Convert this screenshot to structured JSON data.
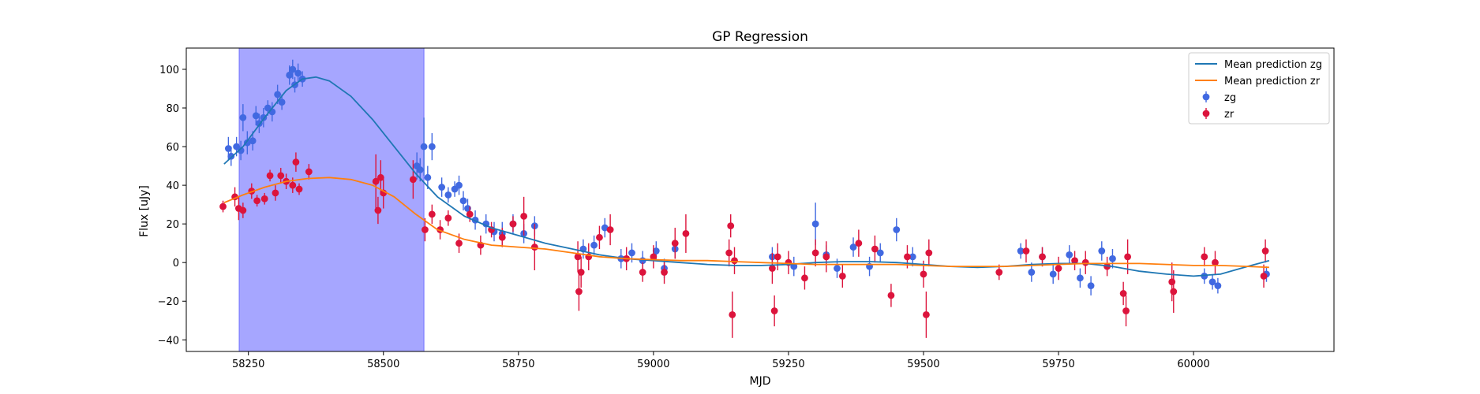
{
  "chart_data": {
    "type": "scatter",
    "title": "GP Regression",
    "xlabel": "MJD",
    "ylabel": "Flux [uJy]",
    "xlim": [
      58135,
      60260
    ],
    "ylim": [
      -46,
      111
    ],
    "x_ticks": [
      58250,
      58500,
      58750,
      59000,
      59250,
      59500,
      59750,
      60000
    ],
    "x_tick_labels": [
      "58250",
      "58500",
      "58750",
      "59000",
      "59250",
      "59500",
      "59750",
      "60000"
    ],
    "y_ticks": [
      -40,
      -20,
      0,
      20,
      40,
      60,
      80,
      100
    ],
    "y_tick_labels": [
      "−40",
      "−20",
      "0",
      "20",
      "40",
      "60",
      "80",
      "100"
    ],
    "highlight_span": {
      "x_start": 58233,
      "x_end": 58575,
      "color": "#a6a6ff"
    },
    "legend": {
      "placement": "top-right",
      "entries": [
        "Mean prediction zg",
        "Mean prediction zr",
        "zg",
        "zr"
      ]
    },
    "series": [
      {
        "name": "Mean prediction zg",
        "kind": "line",
        "color": "#1f77b4",
        "x": [
          58205,
          58240,
          58280,
          58320,
          58350,
          58375,
          58400,
          58440,
          58480,
          58520,
          58560,
          58600,
          58650,
          58700,
          58750,
          58800,
          58850,
          58900,
          58950,
          59000,
          59050,
          59100,
          59150,
          59200,
          59250,
          59300,
          59350,
          59400,
          59450,
          59500,
          59550,
          59600,
          59650,
          59700,
          59750,
          59800,
          59850,
          59900,
          59950,
          60000,
          60050,
          60100,
          60140
        ],
        "y": [
          51,
          60,
          75,
          89,
          95,
          96,
          94,
          86,
          74,
          60,
          46,
          34,
          24,
          18,
          14,
          10,
          7,
          4,
          2,
          1,
          0,
          -1,
          -1.5,
          -1.5,
          -1,
          0,
          0.5,
          0.5,
          0,
          -1,
          -2,
          -2.5,
          -2,
          -1,
          -0.5,
          -0.5,
          -2,
          -4.5,
          -6,
          -7,
          -6,
          -2,
          1
        ]
      },
      {
        "name": "Mean prediction zr",
        "kind": "line",
        "color": "#ff7f0e",
        "x": [
          58205,
          58240,
          58280,
          58320,
          58360,
          58400,
          58440,
          58480,
          58520,
          58560,
          58600,
          58650,
          58700,
          58750,
          58800,
          58850,
          58900,
          58950,
          59000,
          59050,
          59100,
          59150,
          59200,
          59250,
          59300,
          59350,
          59400,
          59450,
          59500,
          59550,
          59600,
          59650,
          59700,
          59750,
          59800,
          59850,
          59900,
          59950,
          60000,
          60050,
          60100,
          60140
        ],
        "y": [
          31,
          35,
          39,
          42,
          43.5,
          44,
          43,
          40,
          34,
          25,
          17,
          12,
          9,
          8,
          7,
          5,
          3,
          2,
          1.5,
          1,
          1,
          0.5,
          0,
          -0.5,
          -1,
          -1,
          -1,
          -1,
          -1.5,
          -2,
          -2,
          -2,
          -1.5,
          -1,
          -0.5,
          -0.5,
          -0.5,
          -1,
          -1.5,
          -1.5,
          -2,
          -2.5
        ]
      },
      {
        "name": "zg",
        "kind": "errorbar",
        "color": "#4169e1",
        "x": [
          58213,
          58218,
          58228,
          58236,
          58240,
          58248,
          58258,
          58264,
          58270,
          58278,
          58286,
          58294,
          58304,
          58312,
          58326,
          58332,
          58336,
          58342,
          58350,
          58562,
          58568,
          58575,
          58582,
          58590,
          58608,
          58620,
          58632,
          58640,
          58648,
          58656,
          58670,
          58690,
          58705,
          58720,
          58740,
          58760,
          58780,
          58870,
          58890,
          58910,
          58940,
          58960,
          58980,
          59005,
          59020,
          59040,
          59220,
          59260,
          59300,
          59320,
          59340,
          59370,
          59400,
          59420,
          59450,
          59480,
          59680,
          59700,
          59720,
          59740,
          59770,
          59790,
          59810,
          59830,
          59850,
          60020,
          60035,
          60045,
          60135
        ],
        "y": [
          59,
          55,
          60,
          58,
          75,
          62,
          63,
          76,
          72,
          75,
          80,
          78,
          87,
          83,
          97,
          100,
          92,
          98,
          95,
          50,
          48,
          60,
          44,
          60,
          39,
          35,
          38,
          40,
          32,
          28,
          22,
          20,
          16,
          15,
          20,
          15,
          19,
          7,
          9,
          18,
          2,
          5,
          1,
          6,
          -3,
          7,
          3,
          -2,
          20,
          4,
          -3,
          8,
          -2,
          5,
          17,
          3,
          6,
          -5,
          3,
          -6,
          4,
          -8,
          -12,
          6,
          2,
          -7,
          -10,
          -12,
          -6
        ],
        "err": [
          6,
          5,
          5,
          5,
          7,
          6,
          5,
          5,
          5,
          5,
          4,
          5,
          5,
          4,
          5,
          5,
          4,
          5,
          4,
          7,
          6,
          15,
          6,
          7,
          5,
          4,
          4,
          5,
          5,
          5,
          5,
          5,
          5,
          6,
          5,
          5,
          5,
          5,
          5,
          5,
          5,
          5,
          5,
          5,
          5,
          5,
          5,
          5,
          11,
          5,
          5,
          5,
          5,
          5,
          6,
          5,
          4,
          5,
          5,
          5,
          5,
          5,
          5,
          5,
          5,
          4,
          4,
          4,
          4
        ]
      },
      {
        "name": "zr",
        "kind": "errorbar",
        "color": "#dc143c",
        "x": [
          58203,
          58225,
          58232,
          58240,
          58256,
          58266,
          58280,
          58290,
          58300,
          58310,
          58320,
          58332,
          58338,
          58344,
          58362,
          58486,
          58490,
          58495,
          58500,
          58555,
          58577,
          58590,
          58605,
          58620,
          58640,
          58660,
          58680,
          58700,
          58720,
          58740,
          58760,
          58780,
          58860,
          58862,
          58866,
          58880,
          58900,
          58920,
          58950,
          58980,
          59000,
          59020,
          59040,
          59060,
          59140,
          59143,
          59146,
          59150,
          59220,
          59224,
          59230,
          59250,
          59280,
          59300,
          59320,
          59350,
          59380,
          59410,
          59440,
          59470,
          59500,
          59505,
          59510,
          59640,
          59690,
          59720,
          59750,
          59780,
          59800,
          59840,
          59870,
          59875,
          59878,
          59960,
          59963,
          60020,
          60040,
          60130,
          60133
        ],
        "y": [
          29,
          34,
          28,
          27,
          37,
          32,
          33,
          45,
          36,
          45,
          42,
          40,
          52,
          38,
          47,
          42,
          27,
          44,
          36,
          43,
          17,
          25,
          17,
          23,
          10,
          25,
          9,
          17,
          13,
          20,
          24,
          8,
          3,
          -15,
          -5,
          3,
          13,
          17,
          2,
          -5,
          3,
          -5,
          10,
          15,
          5,
          19,
          -27,
          1,
          -3,
          -25,
          3,
          0,
          -8,
          5,
          3,
          -7,
          10,
          7,
          -17,
          3,
          -6,
          -27,
          5,
          -5,
          6,
          3,
          -3,
          1,
          0,
          -2,
          -16,
          -25,
          3,
          -10,
          -15,
          3,
          0,
          -7,
          6
        ],
        "err": [
          3,
          5,
          6,
          4,
          4,
          3,
          3,
          3,
          4,
          4,
          4,
          4,
          5,
          3,
          4,
          14,
          7,
          9,
          8,
          10,
          6,
          5,
          5,
          4,
          5,
          4,
          5,
          4,
          5,
          4,
          10,
          12,
          8,
          10,
          8,
          7,
          6,
          8,
          6,
          5,
          6,
          6,
          8,
          10,
          7,
          6,
          12,
          7,
          8,
          8,
          7,
          6,
          6,
          7,
          8,
          6,
          7,
          7,
          6,
          6,
          7,
          12,
          7,
          4,
          6,
          5,
          6,
          5,
          6,
          5,
          6,
          8,
          9,
          10,
          11,
          5,
          6,
          6,
          6
        ]
      }
    ]
  }
}
